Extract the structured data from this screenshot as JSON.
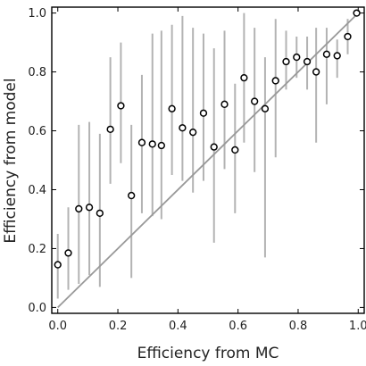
{
  "chart_data": {
    "type": "scatter",
    "title": "",
    "xlabel": "Efficiency from MC",
    "ylabel": "Efficiency from model",
    "xlim": [
      -0.02,
      1.02
    ],
    "ylim": [
      -0.02,
      1.02
    ],
    "xticks": [
      0.0,
      0.2,
      0.4,
      0.6,
      0.8,
      1.0
    ],
    "yticks": [
      0.0,
      0.2,
      0.4,
      0.6,
      0.8,
      1.0
    ],
    "xtick_labels": [
      "0.0",
      "0.2",
      "0.4",
      "0.6",
      "0.8",
      "1.0"
    ],
    "ytick_labels": [
      "0.0",
      "0.2",
      "0.4",
      "0.6",
      "0.8",
      "1.0"
    ],
    "grid": false,
    "reference_line": {
      "from": [
        0,
        0
      ],
      "to": [
        1,
        1
      ]
    },
    "points": [
      {
        "x": 0.0,
        "y": 0.145,
        "err_low": 0.03,
        "err_high": 0.25
      },
      {
        "x": 0.035,
        "y": 0.185,
        "err_low": 0.06,
        "err_high": 0.34
      },
      {
        "x": 0.07,
        "y": 0.335,
        "err_low": 0.08,
        "err_high": 0.62
      },
      {
        "x": 0.105,
        "y": 0.34,
        "err_low": 0.11,
        "err_high": 0.63
      },
      {
        "x": 0.14,
        "y": 0.32,
        "err_low": 0.07,
        "err_high": 0.59
      },
      {
        "x": 0.175,
        "y": 0.605,
        "err_low": 0.42,
        "err_high": 0.85
      },
      {
        "x": 0.21,
        "y": 0.685,
        "err_low": 0.49,
        "err_high": 0.9
      },
      {
        "x": 0.245,
        "y": 0.38,
        "err_low": 0.1,
        "err_high": 0.62
      },
      {
        "x": 0.28,
        "y": 0.56,
        "err_low": 0.32,
        "err_high": 0.79
      },
      {
        "x": 0.315,
        "y": 0.555,
        "err_low": 0.31,
        "err_high": 0.93
      },
      {
        "x": 0.345,
        "y": 0.55,
        "err_low": 0.3,
        "err_high": 0.94
      },
      {
        "x": 0.38,
        "y": 0.675,
        "err_low": 0.45,
        "err_high": 0.96
      },
      {
        "x": 0.415,
        "y": 0.61,
        "err_low": 0.43,
        "err_high": 0.99
      },
      {
        "x": 0.45,
        "y": 0.595,
        "err_low": 0.39,
        "err_high": 0.95
      },
      {
        "x": 0.485,
        "y": 0.66,
        "err_low": 0.43,
        "err_high": 0.93
      },
      {
        "x": 0.52,
        "y": 0.545,
        "err_low": 0.22,
        "err_high": 0.88
      },
      {
        "x": 0.555,
        "y": 0.69,
        "err_low": 0.47,
        "err_high": 0.94
      },
      {
        "x": 0.59,
        "y": 0.535,
        "err_low": 0.32,
        "err_high": 0.76
      },
      {
        "x": 0.62,
        "y": 0.78,
        "err_low": 0.56,
        "err_high": 1.0
      },
      {
        "x": 0.655,
        "y": 0.7,
        "err_low": 0.46,
        "err_high": 0.95
      },
      {
        "x": 0.69,
        "y": 0.675,
        "err_low": 0.17,
        "err_high": 0.85
      },
      {
        "x": 0.725,
        "y": 0.77,
        "err_low": 0.51,
        "err_high": 0.98
      },
      {
        "x": 0.76,
        "y": 0.835,
        "err_low": 0.74,
        "err_high": 0.94
      },
      {
        "x": 0.795,
        "y": 0.85,
        "err_low": 0.78,
        "err_high": 0.92
      },
      {
        "x": 0.83,
        "y": 0.835,
        "err_low": 0.74,
        "err_high": 0.92
      },
      {
        "x": 0.86,
        "y": 0.8,
        "err_low": 0.56,
        "err_high": 0.95
      },
      {
        "x": 0.895,
        "y": 0.86,
        "err_low": 0.69,
        "err_high": 0.95
      },
      {
        "x": 0.93,
        "y": 0.855,
        "err_low": 0.78,
        "err_high": 0.91
      },
      {
        "x": 0.965,
        "y": 0.92,
        "err_low": 0.86,
        "err_high": 0.98
      },
      {
        "x": 0.995,
        "y": 1.0,
        "err_low": 1.0,
        "err_high": 1.0
      }
    ],
    "colors": {
      "errorbar": "#b3b3b3",
      "reference_line": "#999999",
      "marker_edge": "#000000",
      "marker_fill": "#ffffff",
      "axes": "#000000"
    }
  }
}
